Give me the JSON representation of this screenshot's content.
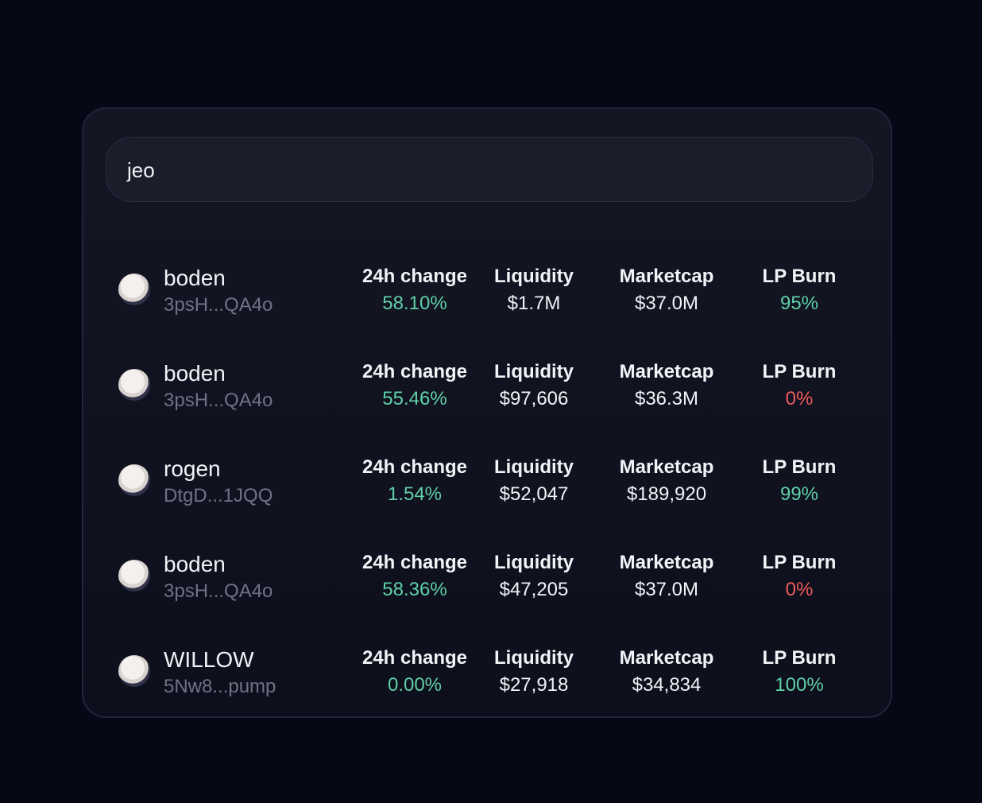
{
  "search": {
    "query": "jeo"
  },
  "columns": {
    "change": "24h change",
    "liquidity": "Liquidity",
    "marketcap": "Marketcap",
    "lp_burn": "LP Burn"
  },
  "results": [
    {
      "name": "boden",
      "address": "3psH...QA4o",
      "change": {
        "text": "58.10%",
        "color": "#5fd0a8"
      },
      "liquidity": "$1.7M",
      "marketcap": "$37.0M",
      "lp_burn": {
        "text": "95%",
        "color": "#5fd0a8"
      }
    },
    {
      "name": "boden",
      "address": "3psH...QA4o",
      "change": {
        "text": "55.46%",
        "color": "#5fd0a8"
      },
      "liquidity": "$97,606",
      "marketcap": "$36.3M",
      "lp_burn": {
        "text": "0%",
        "color": "#ef5a5a"
      }
    },
    {
      "name": "rogen",
      "address": "DtgD...1JQQ",
      "change": {
        "text": "1.54%",
        "color": "#5fd0a8"
      },
      "liquidity": "$52,047",
      "marketcap": "$189,920",
      "lp_burn": {
        "text": "99%",
        "color": "#5fd0a8"
      }
    },
    {
      "name": "boden",
      "address": "3psH...QA4o",
      "change": {
        "text": "58.36%",
        "color": "#5fd0a8"
      },
      "liquidity": "$47,205",
      "marketcap": "$37.0M",
      "lp_burn": {
        "text": "0%",
        "color": "#ef5a5a"
      }
    },
    {
      "name": "WILLOW",
      "address": "5Nw8...pump",
      "change": {
        "text": "0.00%",
        "color": "#5fd0a8"
      },
      "liquidity": "$27,918",
      "marketcap": "$34,834",
      "lp_burn": {
        "text": "100%",
        "color": "#5fd0a8"
      }
    }
  ]
}
